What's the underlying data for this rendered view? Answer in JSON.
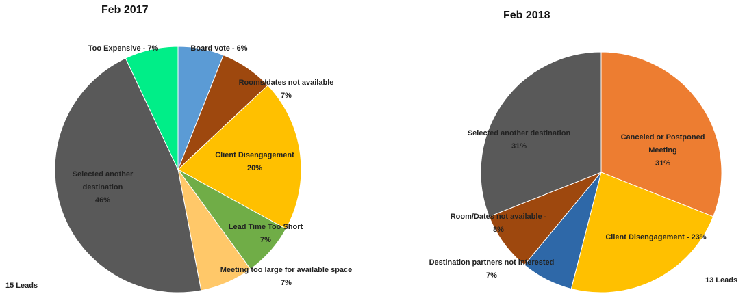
{
  "chart_data": [
    {
      "type": "pie",
      "title": "Feb 2017",
      "categories": [
        "Board vote - 6%",
        "Rooms/dates not available",
        "Client Disengagement",
        "Lead Time Too Short",
        "Meeting too large for available space",
        "Selected another destination",
        "Too Expensive - 7%"
      ],
      "values": [
        6,
        7,
        20,
        7,
        7,
        46,
        7
      ],
      "value_labels": [
        null,
        "7%",
        "20%",
        "7%",
        "7%",
        "46%",
        null
      ],
      "colors": [
        "#5b9bd5",
        "#9e480e",
        "#ffc000",
        "#70ad47",
        "#ffc869",
        "#595959",
        "#00ee88"
      ],
      "annotation": "15 Leads"
    },
    {
      "type": "pie",
      "title": "Feb 2018",
      "categories": [
        "Canceled or Postponed Meeting",
        "Client Disengagement - 23%",
        "Destination partners not interested",
        "Room/Dates not available -",
        "Selected another destination"
      ],
      "values": [
        31,
        23,
        7,
        8,
        31
      ],
      "value_labels": [
        "31%",
        null,
        "7%",
        "8%",
        "31%"
      ],
      "colors": [
        "#ed7d31",
        "#ffc000",
        "#2e68a8",
        "#9e480e",
        "#595959"
      ],
      "annotation": "13 Leads"
    }
  ]
}
